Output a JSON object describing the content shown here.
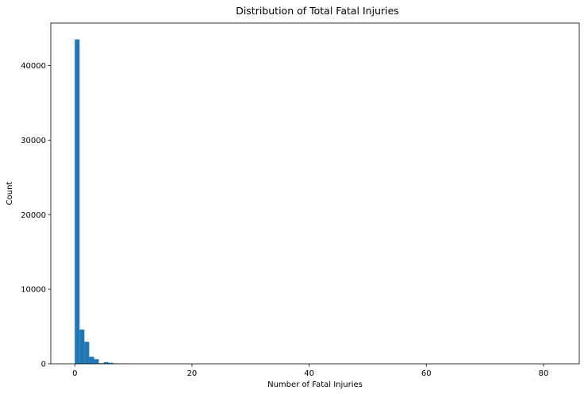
{
  "chart_data": {
    "type": "bar",
    "title": "Distribution of Total Fatal Injuries",
    "xlabel": "Number of Fatal Injuries",
    "ylabel": "Count",
    "xlim": [
      -4.1,
      86.1
    ],
    "ylim": [
      0,
      45700
    ],
    "xticks": [
      0,
      20,
      40,
      60,
      80
    ],
    "yticks": [
      0,
      10000,
      20000,
      30000,
      40000
    ],
    "bin_width": 0.82,
    "bar_color": "#1f77b4",
    "grid": false,
    "bins": [
      {
        "x": 0.0,
        "count": 43500
      },
      {
        "x": 0.82,
        "count": 4600
      },
      {
        "x": 1.64,
        "count": 2950
      },
      {
        "x": 2.46,
        "count": 950
      },
      {
        "x": 3.28,
        "count": 620
      },
      {
        "x": 4.1,
        "count": 80
      },
      {
        "x": 4.92,
        "count": 230
      },
      {
        "x": 5.74,
        "count": 140
      },
      {
        "x": 6.56,
        "count": 60
      },
      {
        "x": 7.38,
        "count": 30
      },
      {
        "x": 8.2,
        "count": 20
      },
      {
        "x": 9.02,
        "count": 12
      },
      {
        "x": 9.84,
        "count": 8
      },
      {
        "x": 11.48,
        "count": 5
      },
      {
        "x": 13.94,
        "count": 3
      },
      {
        "x": 20.5,
        "count": 2
      },
      {
        "x": 81.18,
        "count": 1
      }
    ]
  }
}
